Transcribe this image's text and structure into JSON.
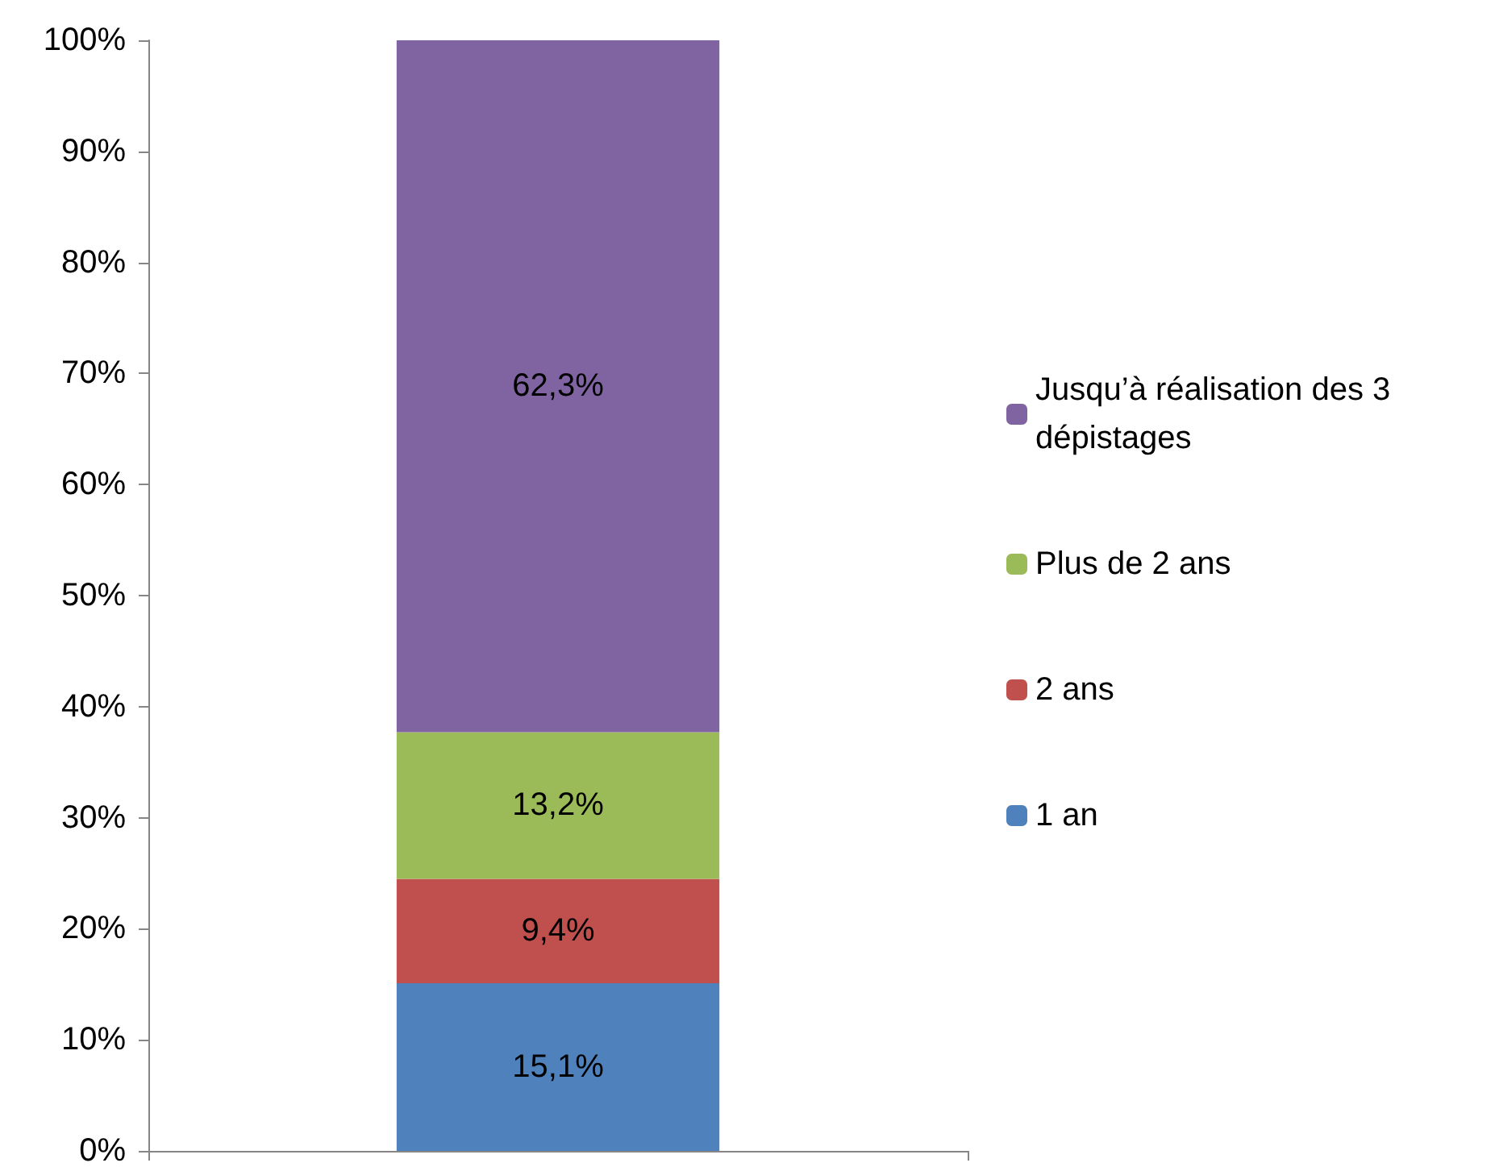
{
  "chart_data": {
    "type": "bar",
    "stacked": true,
    "categories": [
      null
    ],
    "series": [
      {
        "name": "1 an",
        "color": "#4f81bd",
        "values": [
          15.1
        ],
        "value_labels": [
          "15,1%"
        ]
      },
      {
        "name": "2 ans",
        "color": "#c0504d",
        "values": [
          9.4
        ],
        "value_labels": [
          "9,4%"
        ]
      },
      {
        "name": "Plus de 2 ans",
        "color": "#9bbb59",
        "values": [
          13.2
        ],
        "value_labels": [
          "13,2%"
        ]
      },
      {
        "name": "Jusqu’à réalisation des 3 dépistages",
        "color": "#8064a2",
        "values": [
          62.3
        ],
        "value_labels": [
          "62,3%"
        ]
      }
    ],
    "ylim": [
      0,
      100
    ],
    "yticks": [
      {
        "value": 0,
        "label": "0%"
      },
      {
        "value": 10,
        "label": "10%"
      },
      {
        "value": 20,
        "label": "20%"
      },
      {
        "value": 30,
        "label": "30%"
      },
      {
        "value": 40,
        "label": "40%"
      },
      {
        "value": 50,
        "label": "50%"
      },
      {
        "value": 60,
        "label": "60%"
      },
      {
        "value": 70,
        "label": "70%"
      },
      {
        "value": 80,
        "label": "80%"
      },
      {
        "value": 90,
        "label": "90%"
      },
      {
        "value": 100,
        "label": "100%"
      }
    ],
    "grid": false,
    "legend": "right"
  }
}
